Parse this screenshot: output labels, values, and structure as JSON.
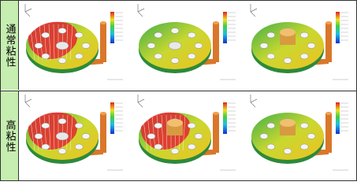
{
  "rows": [
    {
      "label": "通常粘性"
    },
    {
      "label": "高粘性"
    }
  ]
}
